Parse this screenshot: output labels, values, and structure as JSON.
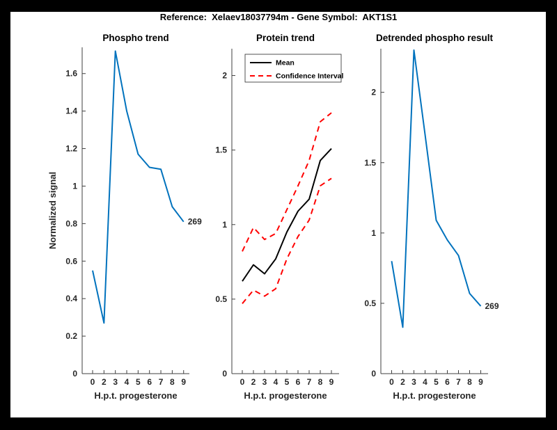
{
  "figure": {
    "title": "Reference:  Xelaev18037794m - Gene Symbol:  AKT1S1",
    "frame_color": "#000000",
    "canvas_color": "#ffffff",
    "accent_blue": "#0072bd",
    "ci_red": "#ff0000",
    "mean_black": "#000000"
  },
  "chart_data": [
    {
      "type": "line",
      "title": "Phospho trend",
      "xlabel": "H.p.t. progesterone",
      "ylabel": "Normalized signal",
      "categories": [
        "0",
        "2",
        "3",
        "4",
        "5",
        "6",
        "7",
        "8",
        "9"
      ],
      "yticks": [
        0,
        0.2,
        0.4,
        0.6,
        0.8,
        1,
        1.2,
        1.4,
        1.6
      ],
      "ylim": [
        0,
        1.74
      ],
      "grid": false,
      "legend": null,
      "series": [
        {
          "name": "Phospho trend",
          "color": "#0072bd",
          "dash": false,
          "values": [
            0.55,
            0.27,
            1.72,
            1.4,
            1.17,
            1.1,
            1.09,
            0.89,
            0.81
          ]
        }
      ],
      "annotations": [
        {
          "text": "269",
          "series": 0,
          "index": 8
        }
      ]
    },
    {
      "type": "line",
      "title": "Protein trend",
      "xlabel": "H.p.t. progesterone",
      "ylabel": "",
      "categories": [
        "0",
        "2",
        "3",
        "4",
        "5",
        "6",
        "7",
        "8",
        "9"
      ],
      "yticks": [
        0,
        0.5,
        1,
        1.5,
        2
      ],
      "ylim": [
        0,
        2.18
      ],
      "grid": false,
      "legend": {
        "position": "northwest",
        "entries": [
          {
            "label": "Mean",
            "color": "#000000",
            "dash": false
          },
          {
            "label": "Confidence Interval",
            "color": "#ff0000",
            "dash": true
          }
        ]
      },
      "series": [
        {
          "name": "Mean",
          "color": "#000000",
          "dash": false,
          "values": [
            0.62,
            0.73,
            0.67,
            0.77,
            0.95,
            1.09,
            1.17,
            1.43,
            1.51
          ]
        },
        {
          "name": "Confidence Interval upper",
          "color": "#ff0000",
          "dash": true,
          "values": [
            0.82,
            0.98,
            0.9,
            0.94,
            1.1,
            1.26,
            1.43,
            1.69,
            1.75
          ]
        },
        {
          "name": "Confidence Interval lower",
          "color": "#ff0000",
          "dash": true,
          "values": [
            0.47,
            0.56,
            0.52,
            0.57,
            0.77,
            0.92,
            1.03,
            1.26,
            1.31
          ]
        }
      ],
      "annotations": []
    },
    {
      "type": "line",
      "title": "Detrended phospho result",
      "xlabel": "H.p.t. progesterone",
      "ylabel": "",
      "categories": [
        "0",
        "2",
        "3",
        "4",
        "5",
        "6",
        "7",
        "8",
        "9"
      ],
      "yticks": [
        0,
        0.5,
        1,
        1.5,
        2
      ],
      "ylim": [
        0,
        2.31
      ],
      "grid": false,
      "legend": null,
      "series": [
        {
          "name": "Detrended phospho",
          "color": "#0072bd",
          "dash": false,
          "values": [
            0.8,
            0.33,
            2.3,
            1.7,
            1.09,
            0.95,
            0.84,
            0.57,
            0.48
          ]
        }
      ],
      "annotations": [
        {
          "text": "269",
          "series": 0,
          "index": 8
        }
      ]
    }
  ]
}
